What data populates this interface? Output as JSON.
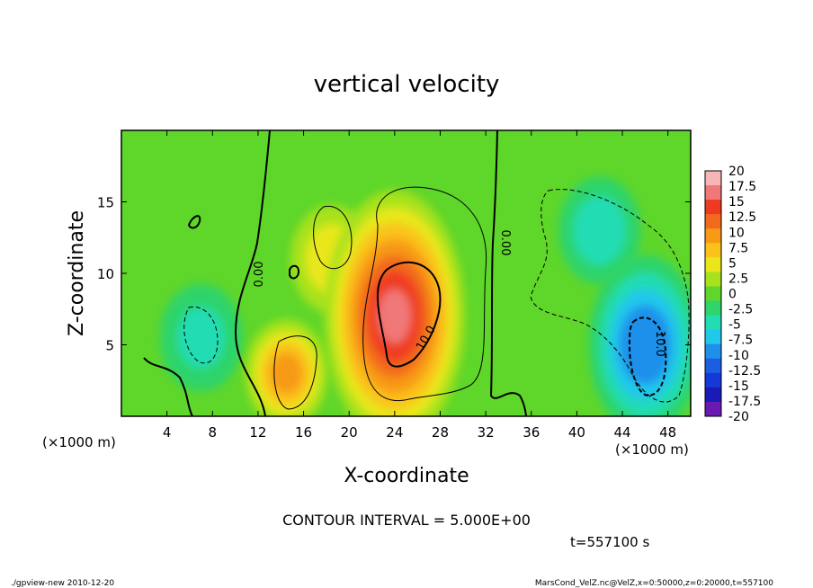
{
  "chart_data": {
    "type": "heatmap",
    "title": "vertical velocity",
    "xlabel": "X-coordinate",
    "ylabel": "Z-coordinate",
    "x_unit_label": "(×1000 m)",
    "y_unit_label": "(×1000 m)",
    "xlim": [
      0,
      50
    ],
    "ylim": [
      0,
      20
    ],
    "xticks": [
      "4",
      "8",
      "12",
      "16",
      "20",
      "24",
      "28",
      "32",
      "36",
      "40",
      "44",
      "48"
    ],
    "yticks": [
      "5",
      "10",
      "15"
    ],
    "colorbar_levels": [
      "20",
      "17.5",
      "15",
      "12.5",
      "10",
      "7.5",
      "5",
      "2.5",
      "0",
      "-2.5",
      "-5",
      "-7.5",
      "-10",
      "-12.5",
      "-15",
      "-17.5",
      "-20"
    ],
    "colorbar_colors": [
      "#f6b6b6",
      "#f07878",
      "#ef3a22",
      "#f26a1d",
      "#f79a16",
      "#fbc31a",
      "#e9e71a",
      "#a7e21c",
      "#5fd62a",
      "#2fd46a",
      "#24dcb4",
      "#22c8ec",
      "#1e90ea",
      "#1c5ee2",
      "#1638d8",
      "#1a1ab8",
      "#6a1ab0"
    ],
    "contour_labels": [
      "0.00",
      "0.00",
      "10.0",
      "-10.0"
    ],
    "contour_interval_text": "CONTOUR INTERVAL = 5.000E+00",
    "time_text": "t=557100 s",
    "features": [
      {
        "kind": "updraft-max",
        "x": 24,
        "z": 7,
        "value": 18
      },
      {
        "kind": "updraft",
        "x": 14.5,
        "z": 3,
        "value": 10
      },
      {
        "kind": "updraft",
        "x": 18.5,
        "z": 11,
        "value": 6
      },
      {
        "kind": "downdraft-min",
        "x": 46,
        "z": 5,
        "value": -12
      },
      {
        "kind": "downdraft",
        "x": 42,
        "z": 13,
        "value": -6
      },
      {
        "kind": "downdraft",
        "x": 7,
        "z": 5.5,
        "value": -5
      }
    ]
  },
  "footer": {
    "left": "./gpview-new   2010-12-20",
    "right": "MarsCond_VelZ.nc@VelZ,x=0:50000,z=0:20000,t=557100"
  }
}
